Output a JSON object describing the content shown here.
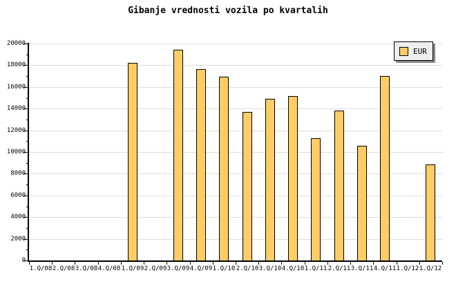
{
  "title": "Gibanje vrednosti vozila po kvartalih",
  "legend": {
    "label": "EUR"
  },
  "colors": {
    "background": "#FFFFFF",
    "bar_fill": "#FFCC66",
    "bar_border": "#000000",
    "gridline": "#DDDDDD",
    "axis": "#000000",
    "legend_bg": "#EEEEEE",
    "legend_shadow": "#888888"
  },
  "chart_data": {
    "type": "bar",
    "title": "Gibanje vrednosti vozila po kvartalih",
    "categories": [
      "1.Q/08",
      "2.Q/08",
      "3.Q/08",
      "4.Q/08",
      "1.Q/09",
      "2.Q/09",
      "3.Q/09",
      "4.Q/09",
      "1.Q/10",
      "2.Q/10",
      "3.Q/10",
      "4.Q/10",
      "1.Q/11",
      "2.Q/11",
      "3.Q/11",
      "4.Q/11",
      "1.Q/12",
      "1.Q/12"
    ],
    "series": [
      {
        "name": "EUR",
        "values": [
          0,
          0,
          0,
          0,
          18200,
          0,
          19450,
          17650,
          16950,
          13700,
          14900,
          15150,
          11250,
          13800,
          10550,
          17000,
          0,
          8850
        ]
      }
    ],
    "xlabel": "",
    "ylabel": "",
    "ylim": [
      0,
      20000
    ],
    "yticks": [
      0,
      2000,
      4000,
      6000,
      8000,
      10000,
      12000,
      14000,
      16000,
      18000,
      20000
    ],
    "yminor_step": 1000,
    "grid": true,
    "legend_position": "top-right"
  }
}
